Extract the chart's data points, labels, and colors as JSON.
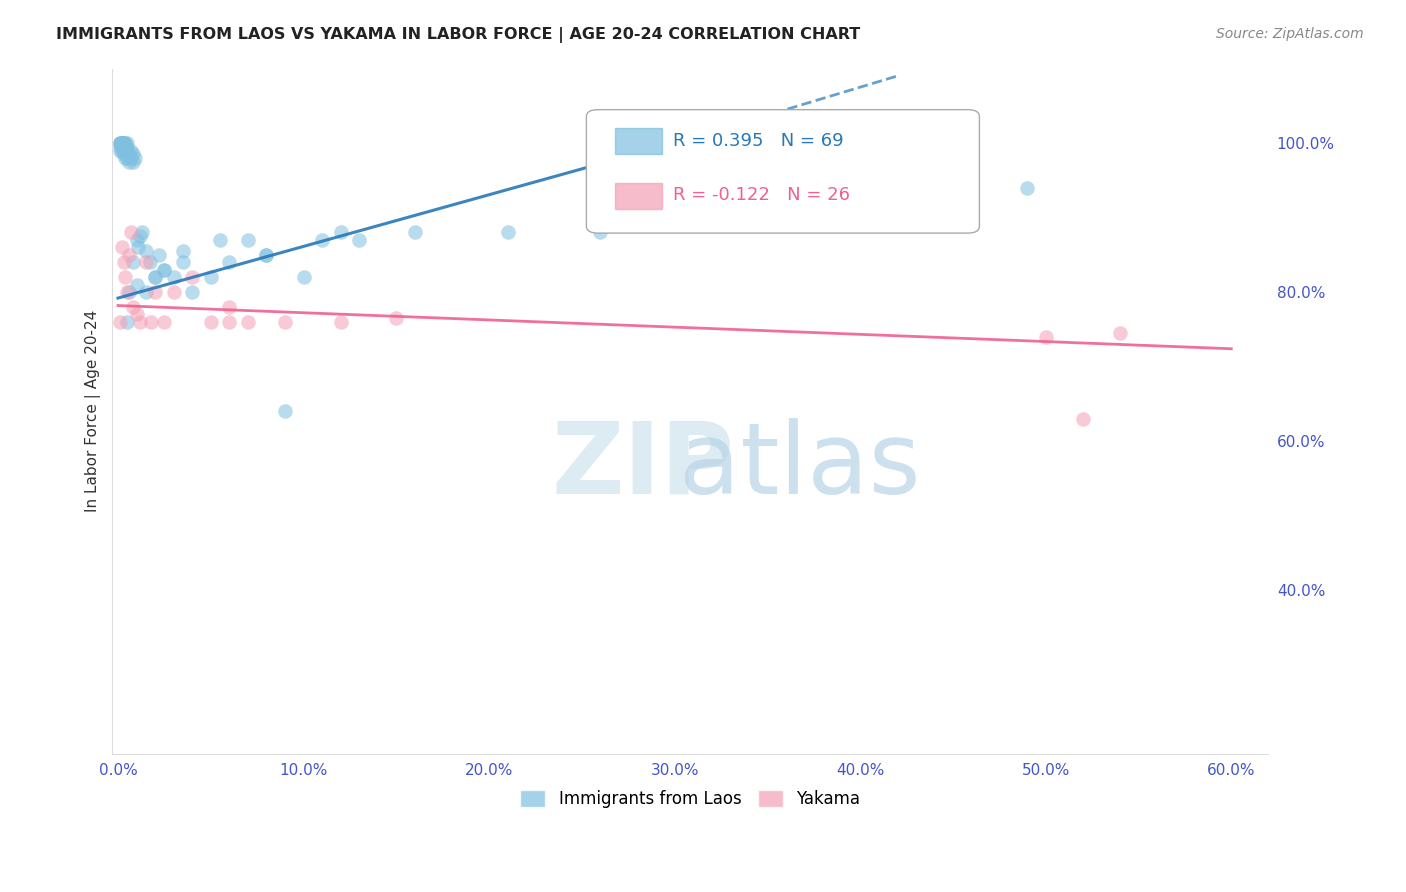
{
  "title": "IMMIGRANTS FROM LAOS VS YAKAMA IN LABOR FORCE | AGE 20-24 CORRELATION CHART",
  "source": "Source: ZipAtlas.com",
  "ylabel": "In Labor Force | Age 20-24",
  "legend_blue_r": "0.395",
  "legend_blue_n": "69",
  "legend_pink_r": "-0.122",
  "legend_pink_n": "26",
  "legend_blue_label": "Immigrants from Laos",
  "legend_pink_label": "Yakama",
  "xlim": [
    -0.003,
    0.62
  ],
  "ylim": [
    0.18,
    1.1
  ],
  "ytick_vals": [
    0.4,
    0.6,
    0.8,
    1.0
  ],
  "ytick_labels": [
    "40.0%",
    "60.0%",
    "80.0%",
    "100.0%"
  ],
  "xtick_vals": [
    0.0,
    0.1,
    0.2,
    0.3,
    0.4,
    0.5,
    0.6
  ],
  "xtick_labels": [
    "0.0%",
    "10.0%",
    "20.0%",
    "30.0%",
    "40.0%",
    "50.0%",
    "60.0%"
  ],
  "blue_color": "#7fbfdf",
  "pink_color": "#f4a0b5",
  "blue_line_color": "#2878b8",
  "pink_line_color": "#f06090",
  "axis_tick_color": "#4455cc",
  "grid_color": "#cccccc",
  "blue_x": [
    0.001,
    0.001,
    0.001,
    0.001,
    0.001,
    0.002,
    0.002,
    0.002,
    0.002,
    0.002,
    0.002,
    0.003,
    0.003,
    0.003,
    0.003,
    0.004,
    0.004,
    0.004,
    0.004,
    0.005,
    0.005,
    0.005,
    0.005,
    0.006,
    0.006,
    0.007,
    0.007,
    0.008,
    0.008,
    0.009,
    0.01,
    0.011,
    0.012,
    0.013,
    0.015,
    0.017,
    0.02,
    0.022,
    0.025,
    0.03,
    0.035,
    0.04,
    0.05,
    0.06,
    0.07,
    0.08,
    0.09,
    0.1,
    0.11,
    0.12,
    0.005,
    0.006,
    0.008,
    0.01,
    0.015,
    0.02,
    0.025,
    0.035,
    0.055,
    0.08,
    0.13,
    0.16,
    0.21,
    0.26,
    0.3,
    0.32,
    0.38,
    0.44,
    0.49
  ],
  "blue_y": [
    0.99,
    0.995,
    1.0,
    1.0,
    1.0,
    0.99,
    0.995,
    1.0,
    1.0,
    1.0,
    1.0,
    0.99,
    1.0,
    1.0,
    0.985,
    0.995,
    1.0,
    0.99,
    0.98,
    0.99,
    0.995,
    0.98,
    1.0,
    0.985,
    0.975,
    0.99,
    0.98,
    0.975,
    0.985,
    0.98,
    0.87,
    0.86,
    0.875,
    0.88,
    0.855,
    0.84,
    0.82,
    0.85,
    0.83,
    0.82,
    0.84,
    0.8,
    0.82,
    0.84,
    0.87,
    0.85,
    0.64,
    0.82,
    0.87,
    0.88,
    0.76,
    0.8,
    0.84,
    0.81,
    0.8,
    0.82,
    0.83,
    0.855,
    0.87,
    0.85,
    0.87,
    0.88,
    0.88,
    0.88,
    0.89,
    0.9,
    0.91,
    0.92,
    0.94
  ],
  "pink_x": [
    0.001,
    0.002,
    0.003,
    0.004,
    0.005,
    0.006,
    0.007,
    0.008,
    0.01,
    0.012,
    0.015,
    0.018,
    0.02,
    0.025,
    0.03,
    0.04,
    0.05,
    0.06,
    0.07,
    0.09,
    0.12,
    0.15,
    0.06,
    0.54,
    0.52,
    0.5
  ],
  "pink_y": [
    0.76,
    0.86,
    0.84,
    0.82,
    0.8,
    0.85,
    0.88,
    0.78,
    0.77,
    0.76,
    0.84,
    0.76,
    0.8,
    0.76,
    0.8,
    0.82,
    0.76,
    0.78,
    0.76,
    0.76,
    0.76,
    0.765,
    0.76,
    0.745,
    0.63,
    0.74
  ],
  "blue_line_x0": 0.0,
  "blue_line_y0": 0.792,
  "blue_line_x1": 0.3,
  "blue_line_y1": 1.0,
  "blue_line_ext_x1": 0.42,
  "blue_line_ext_y1": 1.09,
  "pink_line_x0": 0.0,
  "pink_line_y0": 0.782,
  "pink_line_x1": 0.6,
  "pink_line_y1": 0.724
}
